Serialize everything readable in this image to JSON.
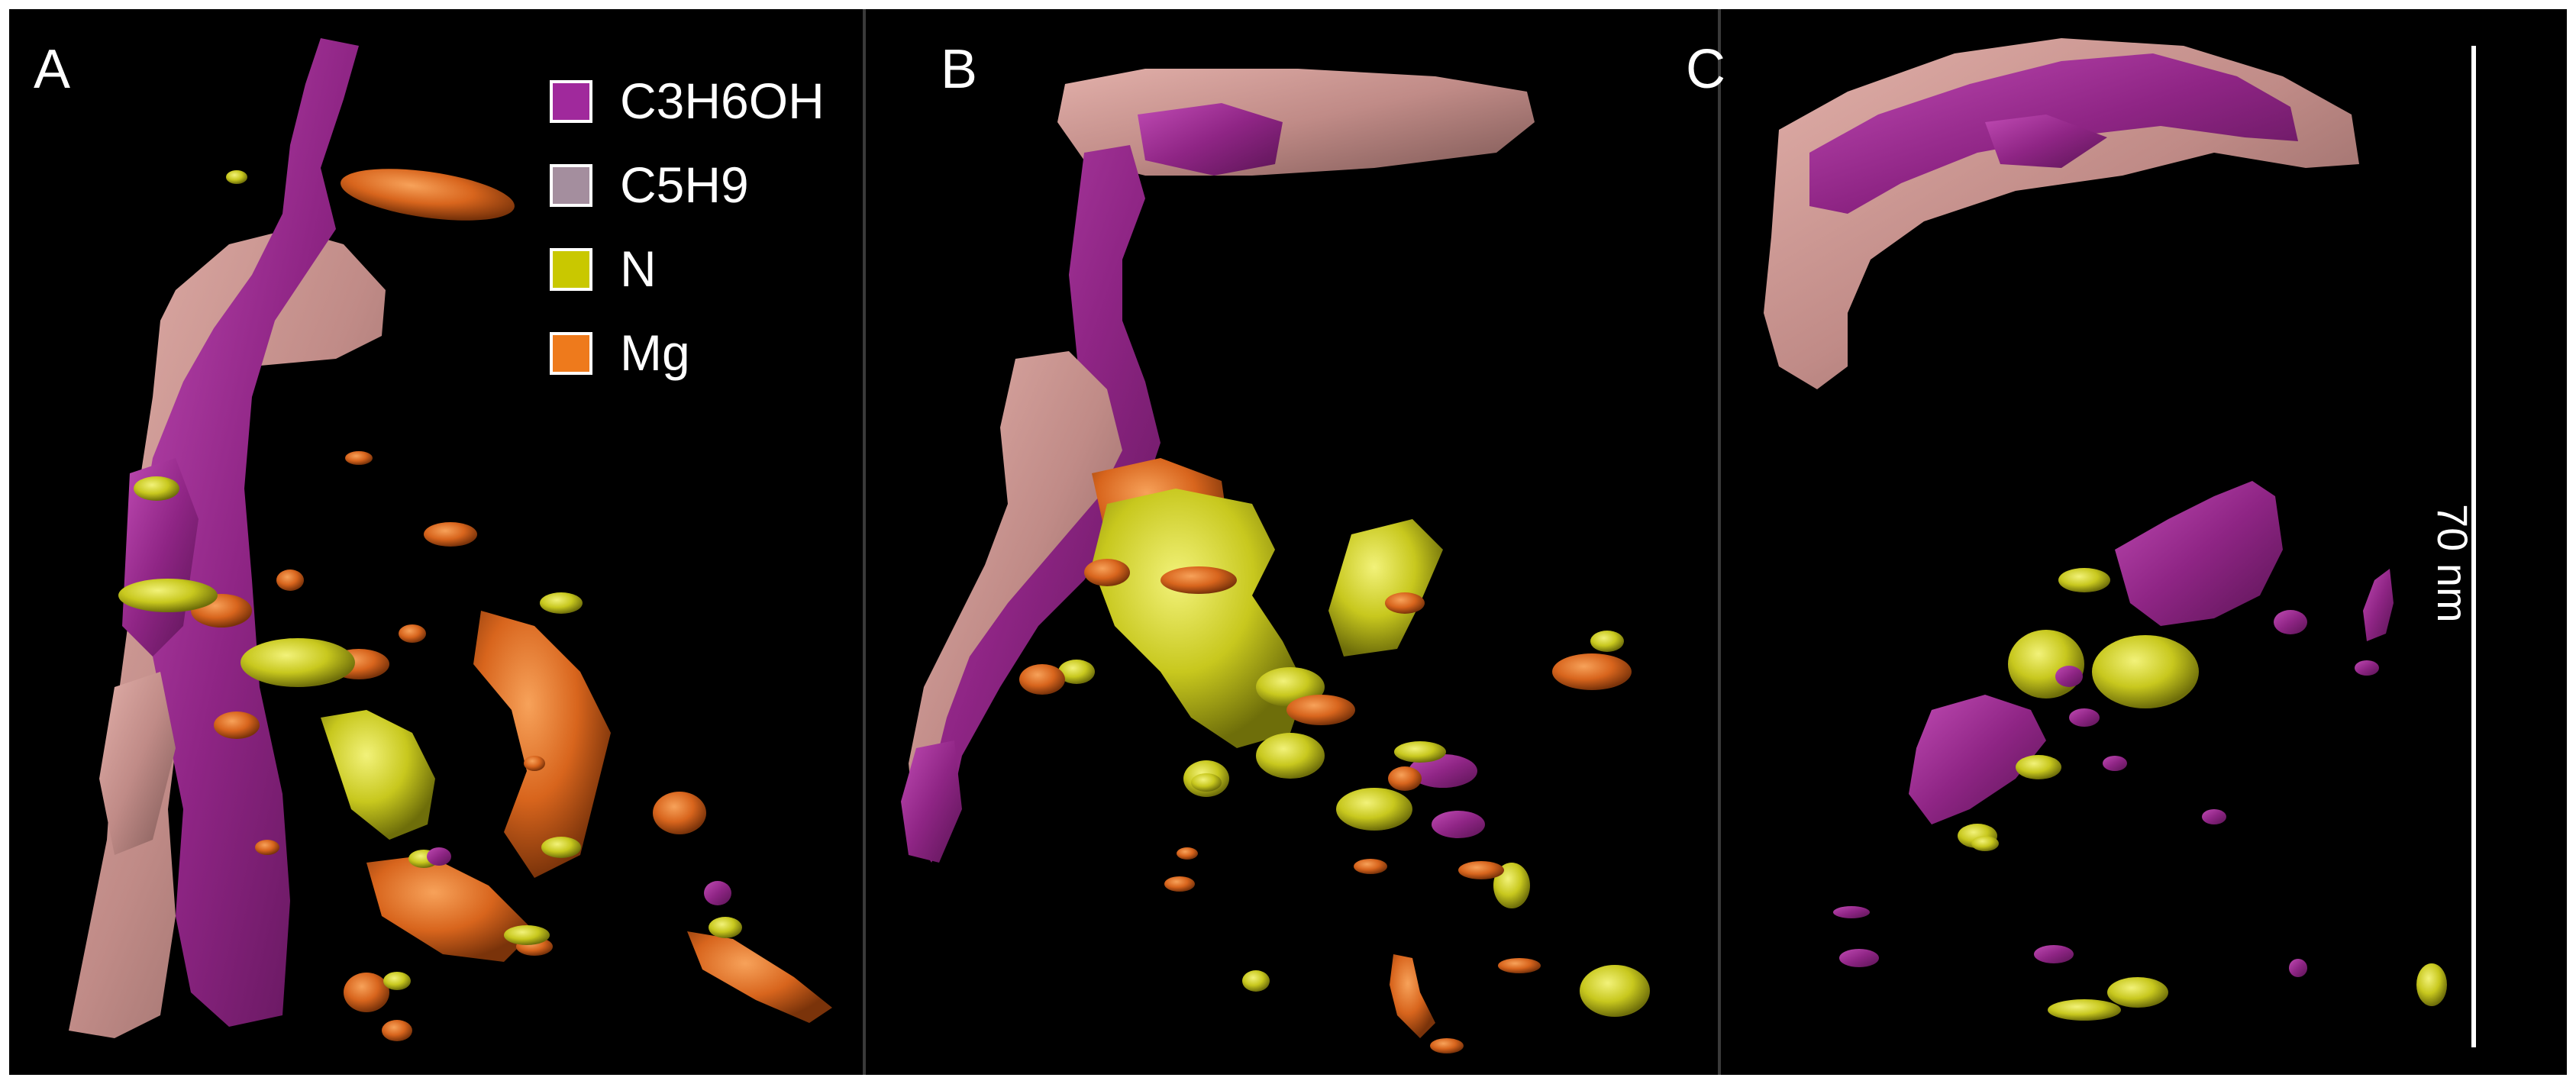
{
  "panels": [
    {
      "label": "A"
    },
    {
      "label": "B"
    },
    {
      "label": "C"
    }
  ],
  "legend": {
    "items": [
      {
        "label": "C3H6OH",
        "color": "#a0299c"
      },
      {
        "label": "C5H9",
        "color": "#a48e9e"
      },
      {
        "label": "N",
        "color": "#c9c800"
      },
      {
        "label": "Mg",
        "color": "#ee7a1c"
      }
    ]
  },
  "scale_bar": {
    "label": "70 nm"
  },
  "colors": {
    "background": "#000000",
    "magenta": "#9b2a8e",
    "pink": "#c9918c",
    "yellow": "#c8c81e",
    "orange": "#d8651d",
    "divider": "#3a3a3a"
  }
}
